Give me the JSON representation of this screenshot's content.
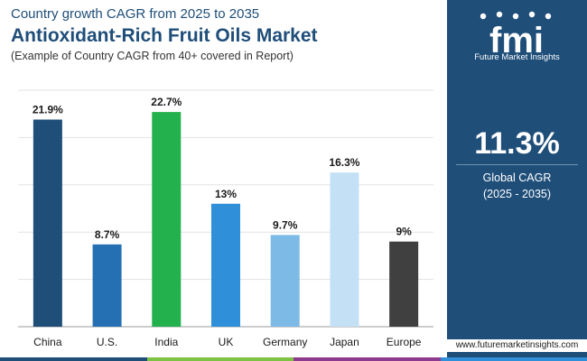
{
  "header": {
    "subtitle": "Country growth CAGR from 2025 to 2035",
    "title": "Antioxidant-Rich Fruit Oils Market",
    "note": "(Example of Country CAGR from 40+ covered in Report)"
  },
  "chart_data": {
    "type": "bar",
    "title": "Antioxidant-Rich Fruit Oils Market",
    "categories": [
      "China",
      "U.S.",
      "India",
      "UK",
      "Germany",
      "Japan",
      "Europe"
    ],
    "values": [
      21.9,
      8.7,
      22.7,
      13,
      9.7,
      16.3,
      9
    ],
    "value_labels": [
      "21.9%",
      "8.7%",
      "22.7%",
      "13%",
      "9.7%",
      "16.3%",
      "9%"
    ],
    "colors": [
      "#1f4e79",
      "#2470b3",
      "#22b14c",
      "#2f8fd8",
      "#7dbbe6",
      "#c4e0f5",
      "#404040"
    ],
    "ylim": [
      0,
      25
    ],
    "grid": true,
    "xlabel": "",
    "ylabel": ""
  },
  "global": {
    "value": "11.3%",
    "label": "Global CAGR",
    "period": "(2025 - 2035)"
  },
  "brand": {
    "logo_text": "fmi",
    "name": "Future Market Insights",
    "website": "www.futuremarketinsights.com"
  },
  "strip_colors": [
    "#1f4e79",
    "#7dc242",
    "#8e3b8f",
    "#2f8fd8"
  ]
}
